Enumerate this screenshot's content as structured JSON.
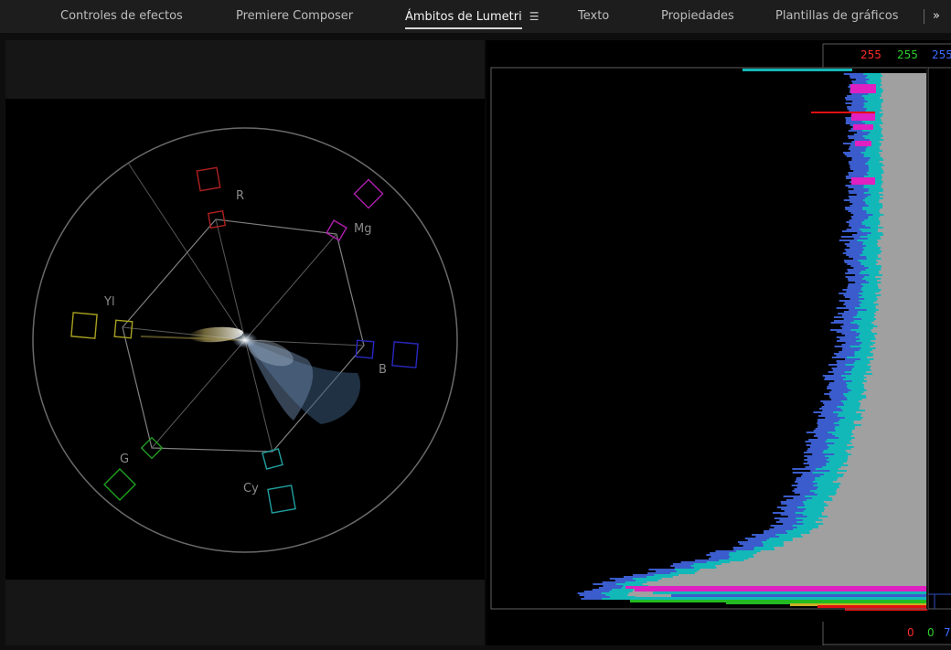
{
  "tabs": [
    {
      "label": "Controles de efectos",
      "active": false
    },
    {
      "label": "Premiere Composer",
      "active": false
    },
    {
      "label": "Ámbitos de Lumetri",
      "active": true
    },
    {
      "label": "Texto",
      "active": false
    },
    {
      "label": "Propiedades",
      "active": false
    },
    {
      "label": "Plantillas de gráficos",
      "active": false
    }
  ],
  "active_tab_menu_icon": "hamburger-menu-icon",
  "close_label": "»",
  "vectorscope": {
    "targets": [
      {
        "label": "R",
        "color": "#b02020"
      },
      {
        "label": "Mg",
        "color": "#b020b0"
      },
      {
        "label": "B",
        "color": "#2828c0"
      },
      {
        "label": "Cy",
        "color": "#20a0a0"
      },
      {
        "label": "G",
        "color": "#20a020"
      },
      {
        "label": "Yl",
        "color": "#a8a020"
      }
    ]
  },
  "histogram": {
    "top_labels": [
      {
        "text": "255",
        "color": "#ff2a2a"
      },
      {
        "text": "255",
        "color": "#2ad02a"
      },
      {
        "text": "255",
        "color": "#3c6cff"
      }
    ],
    "bottom_labels": [
      {
        "text": "0",
        "color": "#ff2a2a"
      },
      {
        "text": "0",
        "color": "#2ad02a"
      },
      {
        "text": "7",
        "color": "#3c6cff"
      }
    ]
  }
}
